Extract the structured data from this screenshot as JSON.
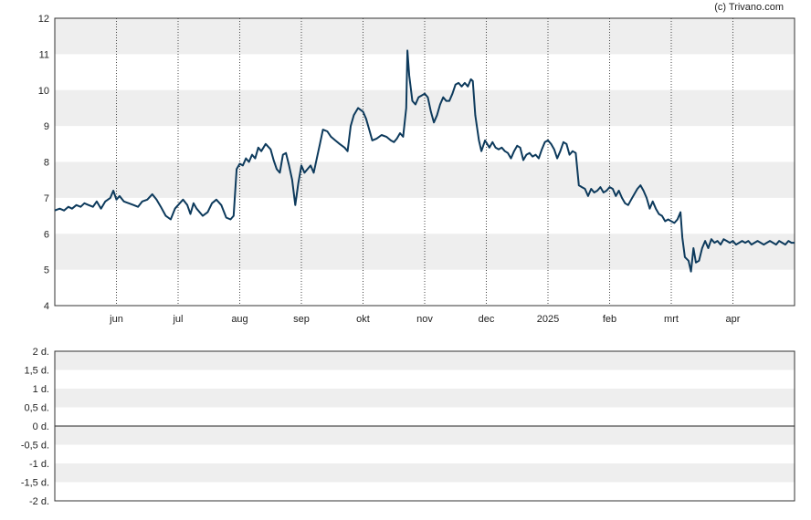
{
  "credit": "(c) Trivano.com",
  "colors": {
    "line": "#0d3a5c",
    "band": "#eeeeee",
    "frame": "#333333",
    "vgrid": "#444444",
    "zero": "#222222"
  },
  "chart_data": [
    {
      "type": "line",
      "title": "",
      "ylim": [
        4,
        12
      ],
      "yticks": [
        4,
        5,
        6,
        7,
        8,
        9,
        10,
        11,
        12
      ],
      "grid": "alternating horizontal bands, dotted vertical month lines",
      "month_ticks": [
        {
          "label": "jun",
          "x": 1.0
        },
        {
          "label": "jul",
          "x": 2.0
        },
        {
          "label": "aug",
          "x": 3.0
        },
        {
          "label": "sep",
          "x": 4.0
        },
        {
          "label": "okt",
          "x": 5.0
        },
        {
          "label": "nov",
          "x": 6.0
        },
        {
          "label": "dec",
          "x": 7.0
        },
        {
          "label": "2025",
          "x": 8.0
        },
        {
          "label": "feb",
          "x": 9.0
        },
        {
          "label": "mrt",
          "x": 10.0
        },
        {
          "label": "apr",
          "x": 11.0
        }
      ],
      "xlim": [
        0.0,
        12.0
      ],
      "series": [
        {
          "points": [
            [
              0.0,
              6.65
            ],
            [
              0.08,
              6.7
            ],
            [
              0.15,
              6.65
            ],
            [
              0.22,
              6.75
            ],
            [
              0.28,
              6.7
            ],
            [
              0.35,
              6.8
            ],
            [
              0.42,
              6.75
            ],
            [
              0.48,
              6.85
            ],
            [
              0.55,
              6.8
            ],
            [
              0.62,
              6.75
            ],
            [
              0.68,
              6.9
            ],
            [
              0.75,
              6.7
            ],
            [
              0.82,
              6.9
            ],
            [
              0.9,
              7.0
            ],
            [
              0.95,
              7.2
            ],
            [
              1.0,
              6.95
            ],
            [
              1.05,
              7.05
            ],
            [
              1.12,
              6.9
            ],
            [
              1.2,
              6.85
            ],
            [
              1.28,
              6.8
            ],
            [
              1.35,
              6.75
            ],
            [
              1.42,
              6.9
            ],
            [
              1.5,
              6.95
            ],
            [
              1.58,
              7.1
            ],
            [
              1.65,
              6.95
            ],
            [
              1.72,
              6.75
            ],
            [
              1.8,
              6.5
            ],
            [
              1.88,
              6.4
            ],
            [
              1.95,
              6.7
            ],
            [
              2.0,
              6.8
            ],
            [
              2.08,
              6.95
            ],
            [
              2.15,
              6.8
            ],
            [
              2.2,
              6.55
            ],
            [
              2.25,
              6.85
            ],
            [
              2.3,
              6.7
            ],
            [
              2.4,
              6.5
            ],
            [
              2.48,
              6.6
            ],
            [
              2.55,
              6.85
            ],
            [
              2.62,
              6.95
            ],
            [
              2.7,
              6.8
            ],
            [
              2.78,
              6.45
            ],
            [
              2.85,
              6.4
            ],
            [
              2.9,
              6.5
            ],
            [
              2.95,
              7.8
            ],
            [
              3.0,
              7.95
            ],
            [
              3.05,
              7.9
            ],
            [
              3.1,
              8.1
            ],
            [
              3.15,
              8.0
            ],
            [
              3.2,
              8.2
            ],
            [
              3.25,
              8.1
            ],
            [
              3.3,
              8.4
            ],
            [
              3.35,
              8.3
            ],
            [
              3.42,
              8.5
            ],
            [
              3.5,
              8.35
            ],
            [
              3.55,
              8.05
            ],
            [
              3.6,
              7.8
            ],
            [
              3.65,
              7.7
            ],
            [
              3.7,
              8.2
            ],
            [
              3.75,
              8.25
            ],
            [
              3.8,
              7.9
            ],
            [
              3.85,
              7.5
            ],
            [
              3.9,
              6.8
            ],
            [
              3.95,
              7.4
            ],
            [
              4.0,
              7.9
            ],
            [
              4.05,
              7.7
            ],
            [
              4.1,
              7.8
            ],
            [
              4.15,
              7.9
            ],
            [
              4.2,
              7.7
            ],
            [
              4.25,
              8.1
            ],
            [
              4.3,
              8.5
            ],
            [
              4.35,
              8.9
            ],
            [
              4.42,
              8.85
            ],
            [
              4.48,
              8.7
            ],
            [
              4.55,
              8.6
            ],
            [
              4.62,
              8.5
            ],
            [
              4.7,
              8.4
            ],
            [
              4.75,
              8.3
            ],
            [
              4.8,
              9.0
            ],
            [
              4.85,
              9.3
            ],
            [
              4.92,
              9.5
            ],
            [
              5.0,
              9.4
            ],
            [
              5.05,
              9.2
            ],
            [
              5.1,
              8.9
            ],
            [
              5.15,
              8.6
            ],
            [
              5.22,
              8.65
            ],
            [
              5.3,
              8.75
            ],
            [
              5.38,
              8.7
            ],
            [
              5.45,
              8.6
            ],
            [
              5.5,
              8.55
            ],
            [
              5.55,
              8.65
            ],
            [
              5.6,
              8.8
            ],
            [
              5.65,
              8.7
            ],
            [
              5.7,
              9.5
            ],
            [
              5.72,
              11.1
            ],
            [
              5.75,
              10.4
            ],
            [
              5.8,
              9.7
            ],
            [
              5.85,
              9.6
            ],
            [
              5.9,
              9.8
            ],
            [
              5.95,
              9.85
            ],
            [
              6.0,
              9.9
            ],
            [
              6.05,
              9.8
            ],
            [
              6.1,
              9.4
            ],
            [
              6.15,
              9.1
            ],
            [
              6.2,
              9.3
            ],
            [
              6.25,
              9.6
            ],
            [
              6.3,
              9.8
            ],
            [
              6.35,
              9.7
            ],
            [
              6.4,
              9.7
            ],
            [
              6.45,
              9.9
            ],
            [
              6.5,
              10.15
            ],
            [
              6.55,
              10.2
            ],
            [
              6.6,
              10.1
            ],
            [
              6.65,
              10.2
            ],
            [
              6.7,
              10.1
            ],
            [
              6.75,
              10.3
            ],
            [
              6.78,
              10.25
            ],
            [
              6.82,
              9.3
            ],
            [
              6.88,
              8.6
            ],
            [
              6.92,
              8.3
            ],
            [
              6.98,
              8.6
            ],
            [
              7.05,
              8.4
            ],
            [
              7.1,
              8.55
            ],
            [
              7.15,
              8.4
            ],
            [
              7.2,
              8.35
            ],
            [
              7.25,
              8.4
            ],
            [
              7.3,
              8.3
            ],
            [
              7.35,
              8.25
            ],
            [
              7.4,
              8.1
            ],
            [
              7.45,
              8.3
            ],
            [
              7.5,
              8.45
            ],
            [
              7.55,
              8.4
            ],
            [
              7.6,
              8.05
            ],
            [
              7.65,
              8.2
            ],
            [
              7.7,
              8.25
            ],
            [
              7.75,
              8.15
            ],
            [
              7.8,
              8.2
            ],
            [
              7.85,
              8.1
            ],
            [
              7.9,
              8.35
            ],
            [
              7.95,
              8.55
            ],
            [
              8.0,
              8.6
            ],
            [
              8.05,
              8.5
            ],
            [
              8.1,
              8.35
            ],
            [
              8.15,
              8.1
            ],
            [
              8.2,
              8.3
            ],
            [
              8.25,
              8.55
            ],
            [
              8.3,
              8.5
            ],
            [
              8.35,
              8.2
            ],
            [
              8.4,
              8.3
            ],
            [
              8.45,
              8.25
            ],
            [
              8.5,
              7.35
            ],
            [
              8.55,
              7.3
            ],
            [
              8.6,
              7.25
            ],
            [
              8.65,
              7.05
            ],
            [
              8.7,
              7.25
            ],
            [
              8.75,
              7.15
            ],
            [
              8.8,
              7.2
            ],
            [
              8.85,
              7.3
            ],
            [
              8.9,
              7.15
            ],
            [
              8.95,
              7.2
            ],
            [
              9.0,
              7.3
            ],
            [
              9.05,
              7.25
            ],
            [
              9.1,
              7.05
            ],
            [
              9.15,
              7.2
            ],
            [
              9.2,
              7.0
            ],
            [
              9.25,
              6.85
            ],
            [
              9.3,
              6.8
            ],
            [
              9.35,
              6.95
            ],
            [
              9.4,
              7.1
            ],
            [
              9.45,
              7.25
            ],
            [
              9.5,
              7.35
            ],
            [
              9.55,
              7.2
            ],
            [
              9.6,
              7.0
            ],
            [
              9.65,
              6.7
            ],
            [
              9.7,
              6.9
            ],
            [
              9.75,
              6.7
            ],
            [
              9.8,
              6.55
            ],
            [
              9.85,
              6.5
            ],
            [
              9.9,
              6.35
            ],
            [
              9.95,
              6.4
            ],
            [
              10.0,
              6.35
            ],
            [
              10.05,
              6.3
            ],
            [
              10.1,
              6.4
            ],
            [
              10.15,
              6.6
            ],
            [
              10.18,
              5.9
            ],
            [
              10.22,
              5.35
            ],
            [
              10.28,
              5.25
            ],
            [
              10.32,
              4.95
            ],
            [
              10.36,
              5.6
            ],
            [
              10.4,
              5.2
            ],
            [
              10.45,
              5.25
            ],
            [
              10.5,
              5.6
            ],
            [
              10.55,
              5.8
            ],
            [
              10.6,
              5.6
            ],
            [
              10.65,
              5.85
            ],
            [
              10.7,
              5.75
            ],
            [
              10.75,
              5.8
            ],
            [
              10.8,
              5.7
            ],
            [
              10.85,
              5.85
            ],
            [
              10.9,
              5.8
            ],
            [
              10.95,
              5.75
            ],
            [
              11.0,
              5.8
            ],
            [
              11.05,
              5.7
            ],
            [
              11.1,
              5.75
            ],
            [
              11.15,
              5.8
            ],
            [
              11.2,
              5.75
            ],
            [
              11.25,
              5.8
            ],
            [
              11.3,
              5.7
            ],
            [
              11.35,
              5.75
            ],
            [
              11.4,
              5.8
            ],
            [
              11.45,
              5.75
            ],
            [
              11.5,
              5.7
            ],
            [
              11.55,
              5.75
            ],
            [
              11.6,
              5.8
            ],
            [
              11.65,
              5.75
            ],
            [
              11.7,
              5.7
            ],
            [
              11.75,
              5.8
            ],
            [
              11.8,
              5.75
            ],
            [
              11.85,
              5.7
            ],
            [
              11.9,
              5.8
            ],
            [
              11.95,
              5.75
            ],
            [
              12.0,
              5.75
            ]
          ]
        }
      ]
    },
    {
      "type": "line",
      "title": "",
      "ylim": [
        -2,
        2
      ],
      "yticks": [
        {
          "value": 2,
          "label": "2 d."
        },
        {
          "value": 1.5,
          "label": "1,5 d."
        },
        {
          "value": 1,
          "label": "1 d."
        },
        {
          "value": 0.5,
          "label": "0,5 d."
        },
        {
          "value": 0,
          "label": "0 d."
        },
        {
          "value": -0.5,
          "label": "-0,5 d."
        },
        {
          "value": -1,
          "label": "-1 d."
        },
        {
          "value": -1.5,
          "label": "-1,5 d."
        },
        {
          "value": -2,
          "label": "-2 d."
        }
      ],
      "reference_line": 0,
      "series": []
    }
  ]
}
